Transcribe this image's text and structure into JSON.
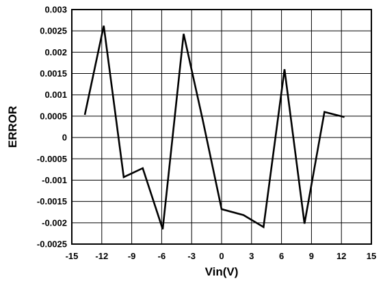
{
  "chart_data": {
    "type": "line",
    "xlabel": "Vin(V)",
    "ylabel": "ERROR",
    "xlim": [
      -15,
      15
    ],
    "ylim": [
      -0.0025,
      0.003
    ],
    "x_ticks": [
      "-15",
      "-12",
      "-9",
      "-6",
      "-3",
      "0",
      "3",
      "6",
      "9",
      "12",
      "15"
    ],
    "y_ticks": [
      "0.003",
      "0.0025",
      "0.002",
      "0.0015",
      "0.001",
      "0.0005",
      "0",
      "-0.0005",
      "-0.001",
      "-0.0015",
      "-0.002",
      "-0.0025"
    ],
    "grid": true,
    "line_color": "#000000",
    "series": [
      {
        "x": [
          -13.7,
          -11.8,
          -9.8,
          -7.9,
          -5.9,
          -3.8,
          -1.9,
          0.0,
          2.2,
          4.2,
          6.3,
          8.3,
          10.3,
          12.3
        ],
        "y": [
          0.00053,
          0.00262,
          -0.00093,
          -0.00072,
          -0.00215,
          0.00243,
          0.00042,
          -0.00168,
          -0.00182,
          -0.0021,
          0.0016,
          -0.00202,
          0.0006,
          0.00048
        ]
      }
    ]
  }
}
